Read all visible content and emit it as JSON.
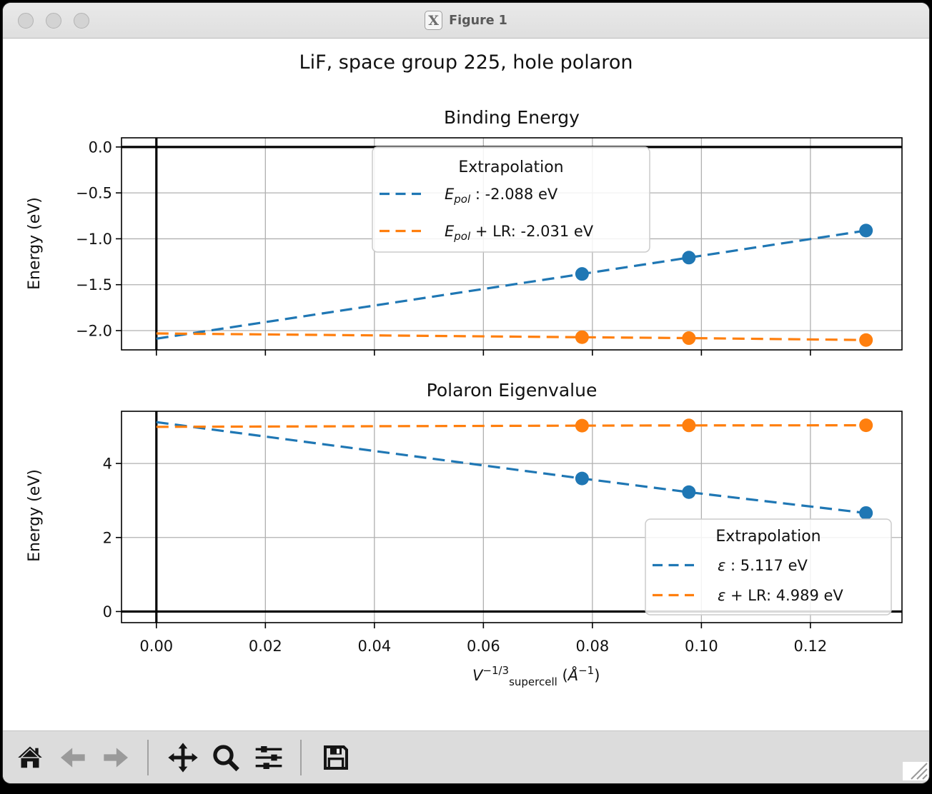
{
  "window": {
    "title": "Figure 1",
    "titlebar_icon": "x11-logo",
    "titlebar_icon_glyph": "X"
  },
  "figure": {
    "suptitle": "LiF, space group 225, hole polaron"
  },
  "chart_data": [
    {
      "type": "line",
      "title": "Binding Energy",
      "ylabel": "Energy (eV)",
      "xlim": [
        -0.0064,
        0.1368
      ],
      "ylim": [
        -2.21,
        0.1
      ],
      "xticks": [
        0.0,
        0.02,
        0.04,
        0.06,
        0.08,
        0.1,
        0.12
      ],
      "xtick_labels": null,
      "yticks": [
        0.0,
        -0.5,
        -1.0,
        -1.5,
        -2.0
      ],
      "ytick_labels": [
        "0.0",
        "−0.5",
        "−1.0",
        "−1.5",
        "−2.0"
      ],
      "grid": true,
      "axhline_y": 0.0,
      "axvline_x": 0.0,
      "series": [
        {
          "name": "E_pol extrapolation",
          "color": "#1f77b4",
          "linestyle": "dashed",
          "x": [
            0.0,
            0.0781,
            0.0977,
            0.1302
          ],
          "y": [
            -2.088,
            -1.383,
            -1.205,
            -0.91
          ],
          "marker_x": [
            0.0781,
            0.0977,
            0.1302
          ],
          "marker_y": [
            -1.383,
            -1.205,
            -0.91
          ]
        },
        {
          "name": "E_pol + LR extrapolation",
          "color": "#ff7f0e",
          "linestyle": "dashed",
          "x": [
            0.0,
            0.0781,
            0.0977,
            0.1302
          ],
          "y": [
            -2.031,
            -2.072,
            -2.082,
            -2.103
          ],
          "marker_x": [
            0.0781,
            0.0977,
            0.1302
          ],
          "marker_y": [
            -2.072,
            -2.082,
            -2.103
          ]
        }
      ],
      "legend": {
        "title": "Extrapolation",
        "position": "upper center",
        "entries": [
          {
            "label": "E_pol : -2.088 eV",
            "color": "#1f77b4",
            "parts": [
              {
                "t": "E",
                "i": 1
              },
              {
                "t": "pol",
                "i": 1,
                "dy": 5,
                "s": 15
              },
              {
                "t": " : -2.088 eV",
                "dy": -5
              }
            ]
          },
          {
            "label": "E_pol + LR: -2.031 eV",
            "color": "#ff7f0e",
            "parts": [
              {
                "t": "E",
                "i": 1
              },
              {
                "t": "pol",
                "i": 1,
                "dy": 5,
                "s": 15
              },
              {
                "t": " + LR: -2.031 eV",
                "dy": -5
              }
            ]
          }
        ]
      }
    },
    {
      "type": "line",
      "title": "Polaron Eigenvalue",
      "ylabel": "Energy (eV)",
      "xlabel": "V_supercell^(-1/3) (Å^-1)",
      "xlabel_parts": [
        {
          "t": "V",
          "i": 1
        },
        {
          "t": "−1/3",
          "dy": -9,
          "s": 15
        },
        {
          "t": "supercell",
          "dy": 16,
          "s": 15
        },
        {
          "t": " (",
          "dy": -7
        },
        {
          "t": "Å",
          "i": 1
        },
        {
          "t": "−1",
          "dy": -9,
          "s": 15
        },
        {
          "t": ")",
          "dy": 9
        }
      ],
      "xlim": [
        -0.0064,
        0.1368
      ],
      "ylim": [
        -0.3,
        5.41
      ],
      "xticks": [
        0.0,
        0.02,
        0.04,
        0.06,
        0.08,
        0.1,
        0.12
      ],
      "xtick_labels": [
        "0.00",
        "0.02",
        "0.04",
        "0.06",
        "0.08",
        "0.10",
        "0.12"
      ],
      "yticks": [
        0,
        2,
        4
      ],
      "ytick_labels": [
        "0",
        "2",
        "4"
      ],
      "grid": true,
      "axhline_y": 0.0,
      "axvline_x": 0.0,
      "series": [
        {
          "name": "epsilon extrapolation",
          "color": "#1f77b4",
          "linestyle": "dashed",
          "x": [
            0.0,
            0.0781,
            0.0977,
            0.1302
          ],
          "y": [
            5.117,
            3.594,
            3.225,
            2.662
          ],
          "marker_x": [
            0.0781,
            0.0977,
            0.1302
          ],
          "marker_y": [
            3.594,
            3.225,
            2.662
          ]
        },
        {
          "name": "epsilon + LR extrapolation",
          "color": "#ff7f0e",
          "linestyle": "dashed",
          "x": [
            0.0,
            0.0781,
            0.0977,
            0.1302
          ],
          "y": [
            4.989,
            5.022,
            5.028,
            5.032
          ],
          "marker_x": [
            0.0781,
            0.0977,
            0.1302
          ],
          "marker_y": [
            5.022,
            5.028,
            5.032
          ]
        }
      ],
      "legend": {
        "title": "Extrapolation",
        "position": "lower right",
        "entries": [
          {
            "label": "ε : 5.117 eV",
            "color": "#1f77b4",
            "parts": [
              {
                "t": "ε",
                "i": 1
              },
              {
                "t": " : 5.117 eV"
              }
            ]
          },
          {
            "label": "ε + LR: 4.989 eV",
            "color": "#ff7f0e",
            "parts": [
              {
                "t": "ε",
                "i": 1
              },
              {
                "t": " + LR: 4.989 eV"
              }
            ]
          }
        ]
      }
    }
  ],
  "style": {
    "accent_blue": "#1f77b4",
    "accent_orange": "#ff7f0e",
    "grid_color": "#b0b0b0"
  },
  "toolbar": {
    "buttons": [
      {
        "name": "home",
        "enabled": true
      },
      {
        "name": "back",
        "enabled": false
      },
      {
        "name": "forward",
        "enabled": false
      },
      {
        "name": "pan",
        "enabled": true
      },
      {
        "name": "zoom-to-rect",
        "enabled": true
      },
      {
        "name": "configure-subplots",
        "enabled": true
      },
      {
        "name": "save",
        "enabled": true
      }
    ]
  }
}
